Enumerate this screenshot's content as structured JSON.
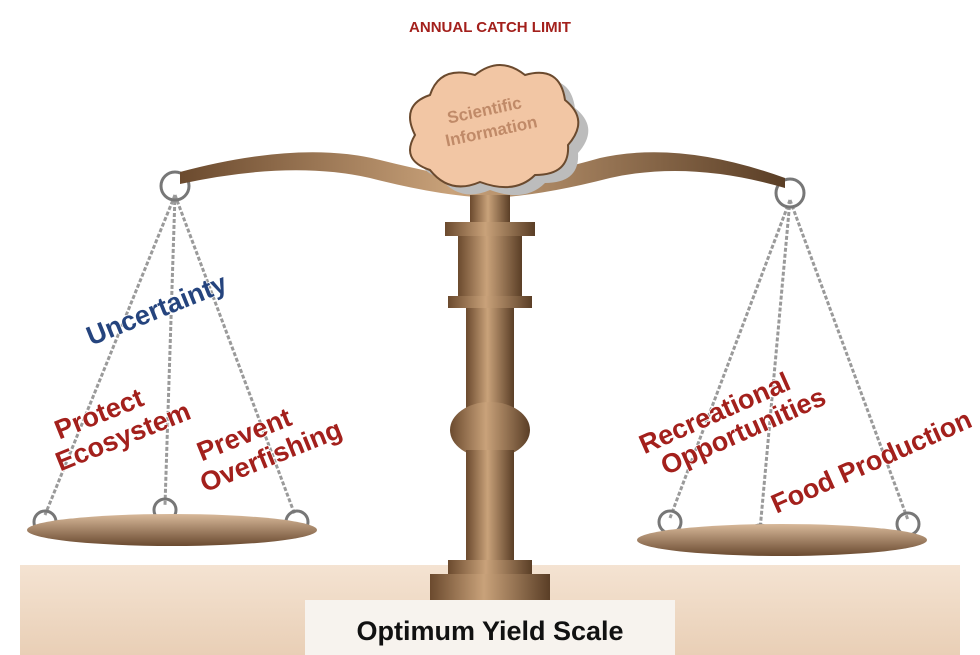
{
  "title": "ANNUAL CATCH LIMIT",
  "center": {
    "lines": [
      "Scientific",
      "Information"
    ]
  },
  "left_pan": {
    "labels": [
      {
        "lines": [
          "Uncertainty"
        ]
      },
      {
        "lines": [
          "Protect",
          "Ecosystem"
        ]
      },
      {
        "lines": [
          "Prevent",
          "Overfishing"
        ]
      }
    ]
  },
  "right_pan": {
    "labels": [
      {
        "lines": [
          "Recreational",
          "Opportunities"
        ]
      },
      {
        "lines": [
          "Food Production"
        ]
      }
    ]
  },
  "caption": "Optimum Yield Scale"
}
